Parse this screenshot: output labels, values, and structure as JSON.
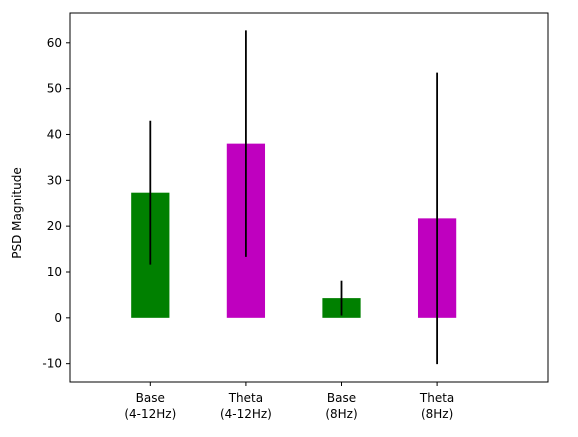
{
  "chart_data": {
    "type": "bar",
    "title": "",
    "xlabel": "",
    "ylabel": "PSD Magnitude",
    "ylim": [
      -14,
      66.5
    ],
    "yticks": [
      -10,
      0,
      10,
      20,
      30,
      40,
      50,
      60
    ],
    "categories": [
      {
        "line1": "Base",
        "line2": "(4-12Hz)"
      },
      {
        "line1": "Theta",
        "line2": "(4-12Hz)"
      },
      {
        "line1": "Base",
        "line2": "(8Hz)"
      },
      {
        "line1": "Theta",
        "line2": "(8Hz)"
      }
    ],
    "values": [
      27.3,
      38.0,
      4.3,
      21.7
    ],
    "errors": [
      15.7,
      24.7,
      3.8,
      31.8
    ],
    "colors": [
      "#008000",
      "#bf00bf",
      "#008000",
      "#bf00bf"
    ],
    "error_color": "#000000",
    "grid": false,
    "legend": "none"
  }
}
